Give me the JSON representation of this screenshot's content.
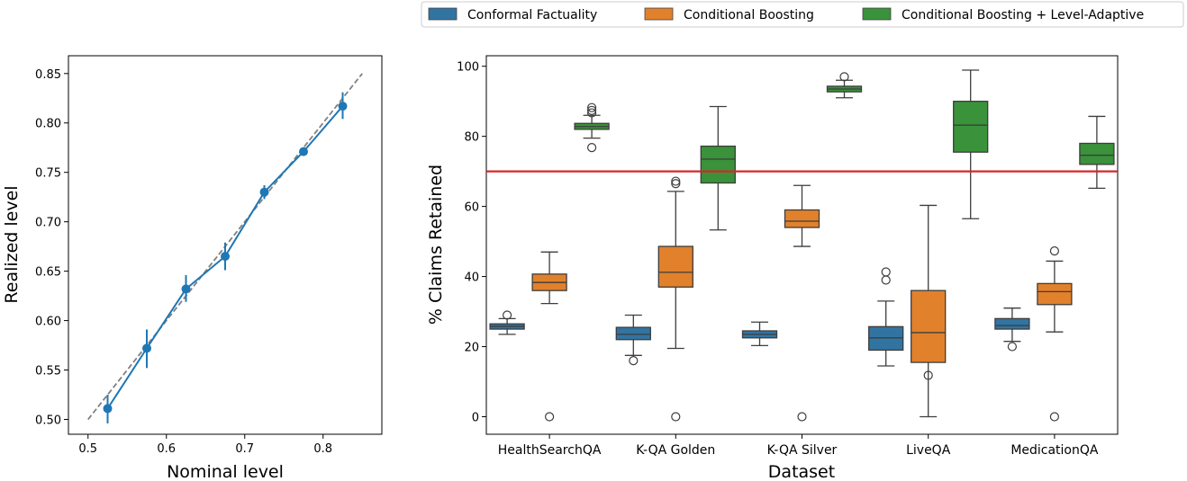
{
  "chart_data": [
    {
      "type": "line",
      "xlabel": "Nominal level",
      "ylabel": "Realized level",
      "xlim": [
        0.475,
        0.875
      ],
      "ylim": [
        0.485,
        0.868
      ],
      "xticks": [
        "0.5",
        "0.6",
        "0.7",
        "0.8"
      ],
      "xtick_values": [
        0.5,
        0.6,
        0.7,
        0.8
      ],
      "yticks": [
        "0.50",
        "0.55",
        "0.60",
        "0.65",
        "0.70",
        "0.75",
        "0.80",
        "0.85"
      ],
      "ytick_values": [
        0.5,
        0.55,
        0.6,
        0.65,
        0.7,
        0.75,
        0.8,
        0.85
      ],
      "reference_line": {
        "style": "dashed",
        "color": "#808080",
        "from": [
          0.5,
          0.5
        ],
        "to": [
          0.85,
          0.85
        ]
      },
      "series": [
        {
          "color": "#1f77b4",
          "points": [
            {
              "x": 0.525,
              "y": 0.511,
              "err_low": 0.496,
              "err_high": 0.525
            },
            {
              "x": 0.575,
              "y": 0.572,
              "err_low": 0.552,
              "err_high": 0.591
            },
            {
              "x": 0.625,
              "y": 0.632,
              "err_low": 0.619,
              "err_high": 0.646
            },
            {
              "x": 0.675,
              "y": 0.665,
              "err_low": 0.651,
              "err_high": 0.679
            },
            {
              "x": 0.725,
              "y": 0.73,
              "err_low": 0.723,
              "err_high": 0.737
            },
            {
              "x": 0.775,
              "y": 0.771,
              "err_low": 0.767,
              "err_high": 0.775
            },
            {
              "x": 0.825,
              "y": 0.817,
              "err_low": 0.804,
              "err_high": 0.831
            }
          ]
        }
      ],
      "grid": false
    },
    {
      "type": "box",
      "xlabel": "Dataset",
      "ylabel": "% Claims Retained",
      "ylim": [
        -5,
        103
      ],
      "yticks": [
        "0",
        "20",
        "40",
        "60",
        "80",
        "100"
      ],
      "ytick_values": [
        0,
        20,
        40,
        60,
        80,
        100
      ],
      "categories": [
        "HealthSearchQA",
        "K-QA Golden",
        "K-QA Silver",
        "LiveQA",
        "MedicationQA"
      ],
      "reference_line": {
        "y": 70,
        "color": "#d62728"
      },
      "legend": {
        "placement": "top",
        "columns": 3
      },
      "series": [
        {
          "name": "Conformal Factuality",
          "color": "#3274a1",
          "boxes": [
            {
              "whisker_low": 23.5,
              "q1": 25,
              "median": 25.8,
              "q3": 26.5,
              "whisker_high": 28,
              "outliers": [
                29
              ]
            },
            {
              "whisker_low": 17.5,
              "q1": 22,
              "median": 23.5,
              "q3": 25.5,
              "whisker_high": 29,
              "outliers": [
                16
              ]
            },
            {
              "whisker_low": 20.3,
              "q1": 22.5,
              "median": 23.5,
              "q3": 24.5,
              "whisker_high": 27,
              "outliers": []
            },
            {
              "whisker_low": 14.5,
              "q1": 19,
              "median": 22.5,
              "q3": 25.7,
              "whisker_high": 33,
              "outliers": [
                39,
                41.3
              ]
            },
            {
              "whisker_low": 21.5,
              "q1": 25,
              "median": 26,
              "q3": 28,
              "whisker_high": 31,
              "outliers": [
                20
              ]
            }
          ]
        },
        {
          "name": "Conditional Boosting",
          "color": "#e1812c",
          "boxes": [
            {
              "whisker_low": 32.3,
              "q1": 36,
              "median": 38.3,
              "q3": 40.7,
              "whisker_high": 47,
              "outliers": [
                0
              ]
            },
            {
              "whisker_low": 19.5,
              "q1": 37,
              "median": 41.2,
              "q3": 48.6,
              "whisker_high": 64.3,
              "outliers": [
                0,
                66.5,
                67.2
              ]
            },
            {
              "whisker_low": 48.6,
              "q1": 54,
              "median": 55.8,
              "q3": 59,
              "whisker_high": 66,
              "outliers": [
                0
              ]
            },
            {
              "whisker_low": 0,
              "q1": 15.5,
              "median": 24,
              "q3": 36,
              "whisker_high": 60.3,
              "outliers": [
                11.8
              ]
            },
            {
              "whisker_low": 24.2,
              "q1": 32,
              "median": 35.7,
              "q3": 38,
              "whisker_high": 44.4,
              "outliers": [
                0,
                47.3
              ]
            }
          ]
        },
        {
          "name": "Conditional Boosting + Level-Adaptive",
          "color": "#3a923a",
          "boxes": [
            {
              "whisker_low": 79.5,
              "q1": 82,
              "median": 82.8,
              "q3": 83.7,
              "whisker_high": 86,
              "outliers": [
                76.8,
                86.7,
                87.4,
                88.2
              ]
            },
            {
              "whisker_low": 53.3,
              "q1": 66.7,
              "median": 73.5,
              "q3": 77.2,
              "whisker_high": 88.5,
              "outliers": []
            },
            {
              "whisker_low": 91,
              "q1": 92.7,
              "median": 93.5,
              "q3": 94.3,
              "whisker_high": 96,
              "outliers": [
                97
              ]
            },
            {
              "whisker_low": 56.5,
              "q1": 75.5,
              "median": 83.2,
              "q3": 90,
              "whisker_high": 98.9,
              "outliers": []
            },
            {
              "whisker_low": 65.2,
              "q1": 72,
              "median": 74.6,
              "q3": 78,
              "whisker_high": 85.7,
              "outliers": []
            }
          ]
        }
      ],
      "grid": false
    }
  ]
}
